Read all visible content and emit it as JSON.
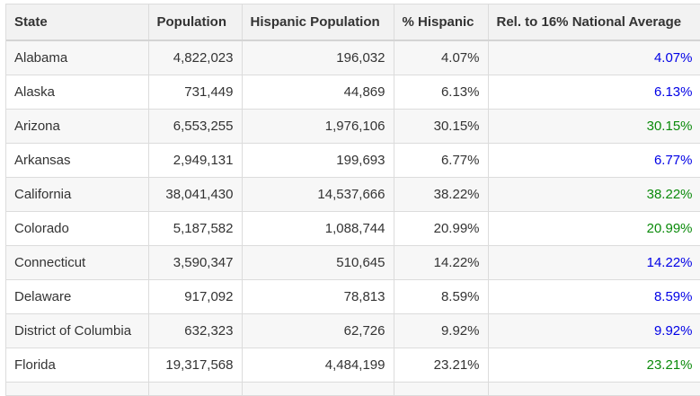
{
  "colors": {
    "below_average": "#0000e6",
    "above_average": "#0a8a0a",
    "header_bg": "#f2f2f2",
    "stripe_bg": "#f7f7f7"
  },
  "table": {
    "headers": {
      "state": "State",
      "population": "Population",
      "hispanic_population": "Hispanic Population",
      "pct_hispanic": "% Hispanic",
      "relative": "Rel. to 16% National Average"
    },
    "rows": [
      {
        "state": "Alabama",
        "population": "4,822,023",
        "hispanic_population": "196,032",
        "pct_hispanic": "4.07%",
        "relative": "4.07%",
        "relative_status": "below"
      },
      {
        "state": "Alaska",
        "population": "731,449",
        "hispanic_population": "44,869",
        "pct_hispanic": "6.13%",
        "relative": "6.13%",
        "relative_status": "below"
      },
      {
        "state": "Arizona",
        "population": "6,553,255",
        "hispanic_population": "1,976,106",
        "pct_hispanic": "30.15%",
        "relative": "30.15%",
        "relative_status": "above"
      },
      {
        "state": "Arkansas",
        "population": "2,949,131",
        "hispanic_population": "199,693",
        "pct_hispanic": "6.77%",
        "relative": "6.77%",
        "relative_status": "below"
      },
      {
        "state": "California",
        "population": "38,041,430",
        "hispanic_population": "14,537,666",
        "pct_hispanic": "38.22%",
        "relative": "38.22%",
        "relative_status": "above"
      },
      {
        "state": "Colorado",
        "population": "5,187,582",
        "hispanic_population": "1,088,744",
        "pct_hispanic": "20.99%",
        "relative": "20.99%",
        "relative_status": "above"
      },
      {
        "state": "Connecticut",
        "population": "3,590,347",
        "hispanic_population": "510,645",
        "pct_hispanic": "14.22%",
        "relative": "14.22%",
        "relative_status": "below"
      },
      {
        "state": "Delaware",
        "population": "917,092",
        "hispanic_population": "78,813",
        "pct_hispanic": "8.59%",
        "relative": "8.59%",
        "relative_status": "below"
      },
      {
        "state": "District of Columbia",
        "population": "632,323",
        "hispanic_population": "62,726",
        "pct_hispanic": "9.92%",
        "relative": "9.92%",
        "relative_status": "below"
      },
      {
        "state": "Florida",
        "population": "19,317,568",
        "hispanic_population": "4,484,199",
        "pct_hispanic": "23.21%",
        "relative": "23.21%",
        "relative_status": "above"
      }
    ]
  }
}
